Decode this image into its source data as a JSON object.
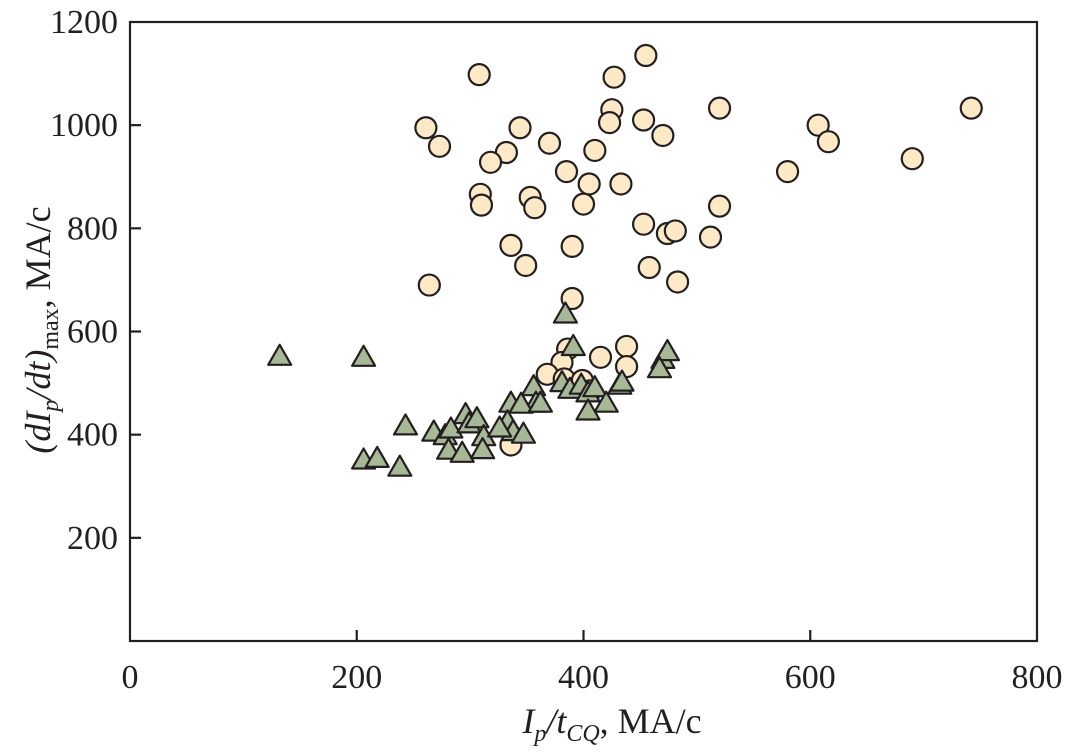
{
  "chart_data": {
    "type": "scatter",
    "title": "",
    "xlabel": {
      "base1": "I",
      "sub1": "p",
      "mid": "/t",
      "sub2": "CQ",
      "unit": ", MA/c",
      "text": "Ip/tCQ, MA/c"
    },
    "ylabel": {
      "open": "(dI",
      "sub1": "p",
      "mid": "/dt)",
      "sub2": "max",
      "unit": ", MA/c",
      "text": "(dIp/dt)max, MA/c"
    },
    "xlim": [
      0,
      800
    ],
    "ylim": [
      0,
      1200
    ],
    "x_ticks": [
      0,
      200,
      400,
      600,
      800
    ],
    "x_tick_labels": [
      "0",
      "200",
      "400",
      "600",
      "800"
    ],
    "y_ticks": [
      200,
      400,
      600,
      800,
      1000,
      1200
    ],
    "y_tick_labels": [
      "200",
      "400",
      "600",
      "800",
      "1000",
      "1200"
    ],
    "grid": false,
    "legend": "none",
    "series": [
      {
        "name": "circles",
        "marker": "circle",
        "color": "#fde9c5",
        "points": [
          [
            308,
            1098
          ],
          [
            455,
            1135
          ],
          [
            427,
            1093
          ],
          [
            425,
            1030
          ],
          [
            423,
            1005
          ],
          [
            453,
            1010
          ],
          [
            520,
            1033
          ],
          [
            470,
            980
          ],
          [
            742,
            1033
          ],
          [
            607,
            1000
          ],
          [
            616,
            968
          ],
          [
            261,
            995
          ],
          [
            273,
            959
          ],
          [
            344,
            995
          ],
          [
            370,
            965
          ],
          [
            332,
            947
          ],
          [
            318,
            928
          ],
          [
            410,
            951
          ],
          [
            385,
            910
          ],
          [
            405,
            886
          ],
          [
            433,
            886
          ],
          [
            580,
            910
          ],
          [
            690,
            935
          ],
          [
            309,
            866
          ],
          [
            310,
            845
          ],
          [
            353,
            860
          ],
          [
            357,
            840
          ],
          [
            400,
            847
          ],
          [
            453,
            808
          ],
          [
            474,
            790
          ],
          [
            481,
            795
          ],
          [
            512,
            783
          ],
          [
            520,
            843
          ],
          [
            336,
            767
          ],
          [
            390,
            765
          ],
          [
            349,
            728
          ],
          [
            458,
            724
          ],
          [
            483,
            696
          ],
          [
            264,
            690
          ],
          [
            390,
            664
          ],
          [
            386,
            566
          ],
          [
            381,
            540
          ],
          [
            415,
            550
          ],
          [
            438,
            571
          ],
          [
            368,
            517
          ],
          [
            383,
            508
          ],
          [
            399,
            505
          ],
          [
            406,
            485
          ],
          [
            438,
            532
          ],
          [
            336,
            380
          ]
        ]
      },
      {
        "name": "triangles",
        "marker": "triangle",
        "color": "#a7b896",
        "points": [
          [
            132,
            551
          ],
          [
            206,
            549
          ],
          [
            384,
            633
          ],
          [
            391,
            570
          ],
          [
            470,
            545
          ],
          [
            474,
            560
          ],
          [
            467,
            527
          ],
          [
            432,
            495
          ],
          [
            434,
            501
          ],
          [
            356,
            492
          ],
          [
            358,
            460
          ],
          [
            336,
            460
          ],
          [
            345,
            458
          ],
          [
            362,
            460
          ],
          [
            381,
            500
          ],
          [
            388,
            487
          ],
          [
            398,
            495
          ],
          [
            404,
            480
          ],
          [
            410,
            490
          ],
          [
            420,
            460
          ],
          [
            404,
            445
          ],
          [
            243,
            416
          ],
          [
            268,
            404
          ],
          [
            278,
            397
          ],
          [
            283,
            410
          ],
          [
            296,
            438
          ],
          [
            299,
            420
          ],
          [
            306,
            430
          ],
          [
            312,
            395
          ],
          [
            333,
            424
          ],
          [
            338,
            405
          ],
          [
            347,
            400
          ],
          [
            206,
            350
          ],
          [
            218,
            353
          ],
          [
            238,
            336
          ],
          [
            281,
            369
          ],
          [
            293,
            363
          ],
          [
            311,
            370
          ],
          [
            326,
            412
          ]
        ]
      }
    ]
  }
}
